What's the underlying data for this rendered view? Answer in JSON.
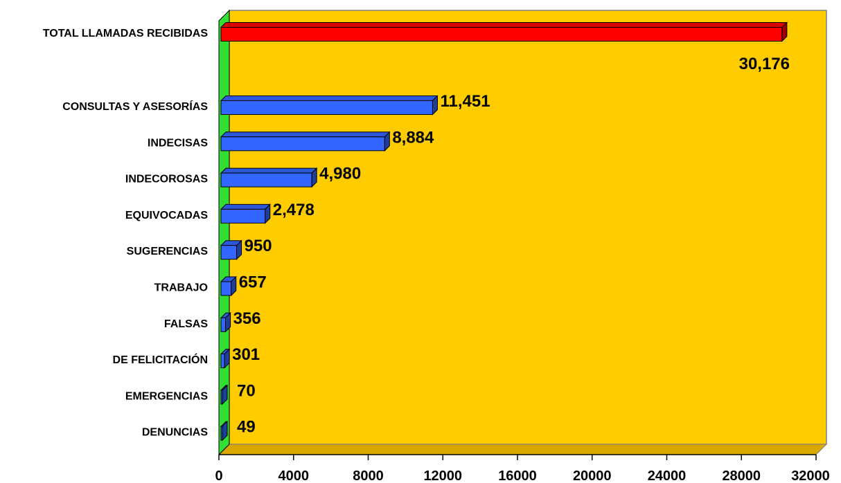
{
  "chart_data": {
    "type": "bar",
    "orientation": "horizontal",
    "three_d": true,
    "categories": [
      "TOTAL LLAMADAS RECIBIDAS",
      "CONSULTAS Y ASESORÍAS",
      "INDECISAS",
      "INDECOROSAS",
      "EQUIVOCADAS",
      "SUGERENCIAS",
      "TRABAJO",
      "FALSAS",
      "DE FELICITACIÓN",
      "EMERGENCIAS",
      "DENUNCIAS"
    ],
    "values": [
      30176,
      11451,
      8884,
      4980,
      2478,
      950,
      657,
      356,
      301,
      70,
      49
    ],
    "value_labels": [
      "30,176",
      "11,451",
      "8,884",
      "4,980",
      "2,478",
      "950",
      "657",
      "356",
      "301",
      "70",
      "49"
    ],
    "xlim": [
      0,
      32000
    ],
    "x_ticks": [
      "0",
      "4000",
      "8000",
      "12000",
      "16000",
      "20000",
      "24000",
      "28000",
      "32000"
    ],
    "grid": false,
    "legend": "none",
    "colors": {
      "plot_background": "#FFCC00",
      "side_wall": "#33DD33",
      "total_bar": "#FF0000",
      "bar": "#3366FF"
    }
  }
}
